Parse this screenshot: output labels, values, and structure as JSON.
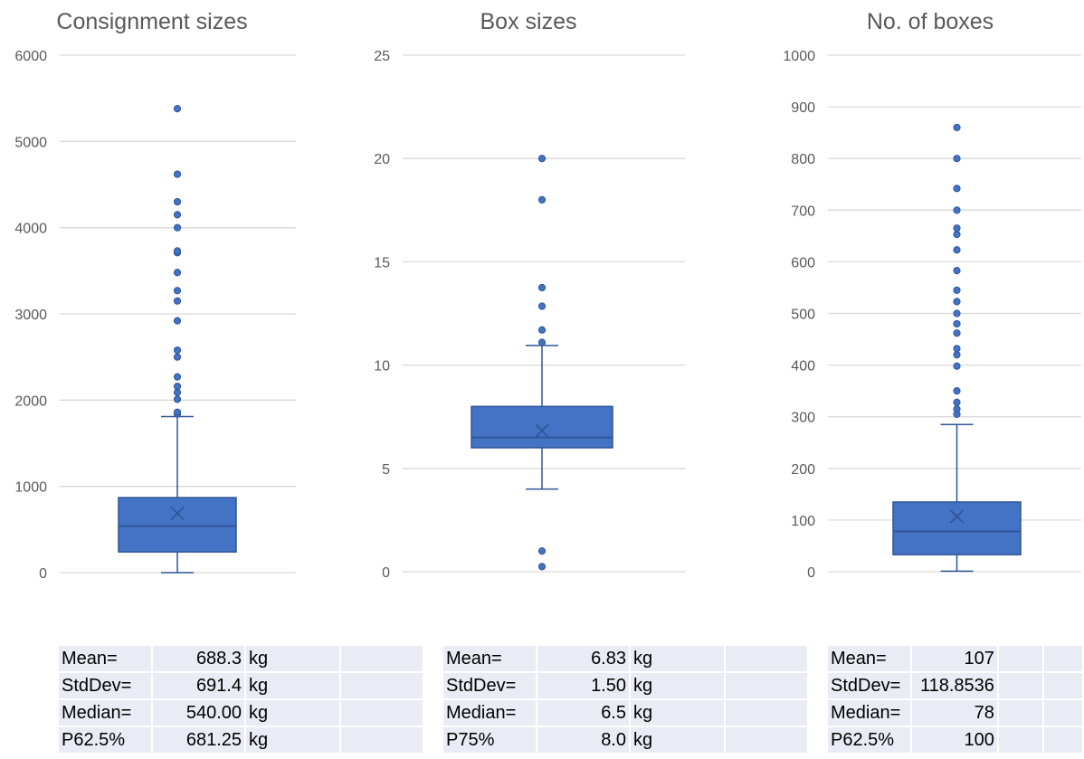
{
  "chart_data": [
    {
      "type": "boxplot",
      "title": "Consignment sizes",
      "ylim": [
        0,
        6000
      ],
      "yticks": [
        0,
        1000,
        2000,
        3000,
        4000,
        5000,
        6000
      ],
      "box": {
        "q1": 240,
        "median": 540,
        "q3": 870,
        "mean": 688.3,
        "whisker_low": 0,
        "whisker_high": 1810
      },
      "outliers": [
        1840,
        1860,
        2010,
        2090,
        2160,
        2270,
        2500,
        2580,
        2920,
        3150,
        3270,
        3480,
        3710,
        3730,
        4000,
        4150,
        4300,
        4620,
        5380
      ],
      "stats": [
        {
          "label": "Mean=",
          "value": "688.3",
          "unit": "kg"
        },
        {
          "label": "StdDev=",
          "value": "691.4",
          "unit": "kg"
        },
        {
          "label": "Median=",
          "value": "540.00",
          "unit": "kg"
        },
        {
          "label": "P62.5%",
          "value": "681.25",
          "unit": "kg"
        }
      ]
    },
    {
      "type": "boxplot",
      "title": "Box sizes",
      "ylim": [
        0,
        25
      ],
      "yticks": [
        0,
        5,
        10,
        15,
        20,
        25
      ],
      "box": {
        "q1": 6.0,
        "median": 6.5,
        "q3": 8.0,
        "mean": 6.83,
        "whisker_low": 4.0,
        "whisker_high": 10.95
      },
      "outliers": [
        0.25,
        1.0,
        11.1,
        11.7,
        12.85,
        13.75,
        18.0,
        20.0
      ],
      "stats": [
        {
          "label": "Mean=",
          "value": "6.83",
          "unit": "kg"
        },
        {
          "label": "StdDev=",
          "value": "1.50",
          "unit": "kg"
        },
        {
          "label": "Median=",
          "value": "6.5",
          "unit": "kg"
        },
        {
          "label": "P75%",
          "value": "8.0",
          "unit": "kg"
        }
      ]
    },
    {
      "type": "boxplot",
      "title": "No. of boxes",
      "ylim": [
        0,
        1000
      ],
      "yticks": [
        0,
        100,
        200,
        300,
        400,
        500,
        600,
        700,
        800,
        900,
        1000
      ],
      "box": {
        "q1": 33,
        "median": 78,
        "q3": 135,
        "mean": 107,
        "whisker_low": 1,
        "whisker_high": 285
      },
      "outliers": [
        305,
        315,
        328,
        350,
        398,
        420,
        432,
        462,
        480,
        500,
        523,
        545,
        583,
        623,
        653,
        665,
        700,
        742,
        800,
        860
      ],
      "stats": [
        {
          "label": "Mean=",
          "value": "107",
          "unit": ""
        },
        {
          "label": "StdDev=",
          "value": "118.8536",
          "unit": ""
        },
        {
          "label": "Median=",
          "value": "78",
          "unit": ""
        },
        {
          "label": "P62.5%",
          "value": "100",
          "unit": ""
        }
      ]
    }
  ],
  "colors": {
    "box_fill": "#4472c4",
    "box_stroke": "#2f5597",
    "grid": "#d9d9d9",
    "axis_text": "#595959",
    "table_fill": "#e9ecf4"
  }
}
